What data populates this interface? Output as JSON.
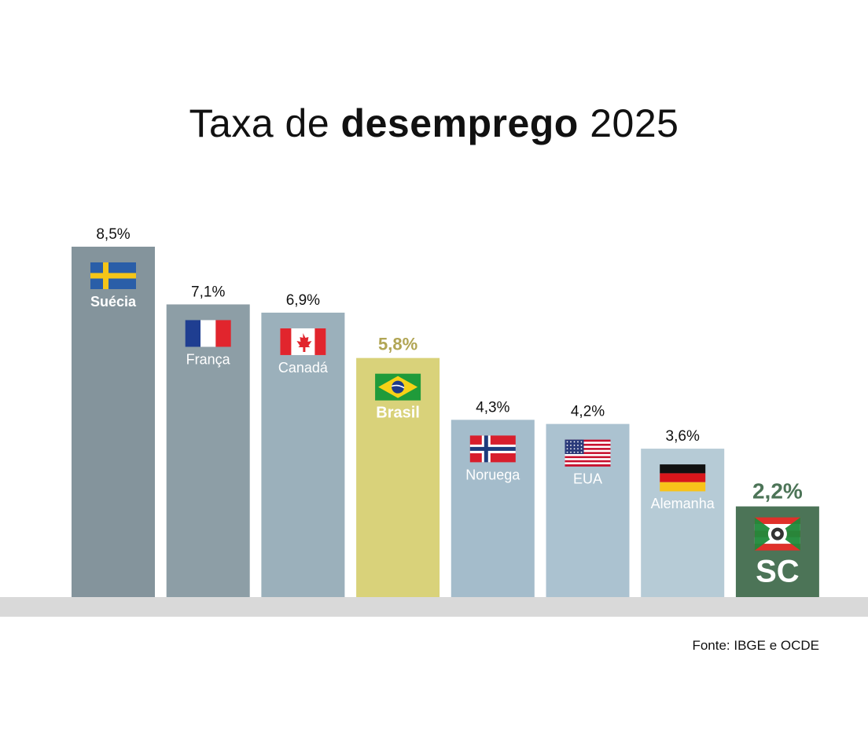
{
  "title": {
    "prefix": "Taxa de ",
    "bold": "desemprego",
    "suffix": " 2025"
  },
  "source": "Fonte: IBGE e OCDE",
  "colors": {
    "baseline": "#d9d9d9",
    "value_text": "#111111"
  },
  "chart_data": {
    "type": "bar",
    "title": "Taxa de desemprego 2025",
    "categories": [
      "Suécia",
      "França",
      "Canadá",
      "Brasil",
      "Noruega",
      "EUA",
      "Alemanha",
      "SC"
    ],
    "values": [
      8.5,
      7.1,
      6.9,
      5.8,
      4.3,
      4.2,
      3.6,
      2.2
    ],
    "value_labels": [
      "8,5%",
      "7,1%",
      "6,9%",
      "5,8%",
      "4,3%",
      "4,2%",
      "3,6%",
      "2,2%"
    ],
    "bar_colors": [
      "#84949c",
      "#8d9ea6",
      "#9bb0bb",
      "#d9d27a",
      "#a4bccb",
      "#abc2d0",
      "#b6cbd6",
      "#4c7457"
    ],
    "value_label_colors": [
      "#111111",
      "#111111",
      "#111111",
      "#b1a554",
      "#111111",
      "#111111",
      "#111111",
      "#4c7457"
    ],
    "highlighted": [
      "Brasil",
      "SC"
    ],
    "flags": [
      "sweden-flag",
      "france-flag",
      "canada-flag",
      "brazil-flag",
      "norway-flag",
      "usa-flag",
      "germany-flag",
      "santa-catarina-flag"
    ],
    "ylim": [
      0,
      8.5
    ],
    "xlabel": "",
    "ylabel": "",
    "grid": false,
    "legend": "none"
  }
}
